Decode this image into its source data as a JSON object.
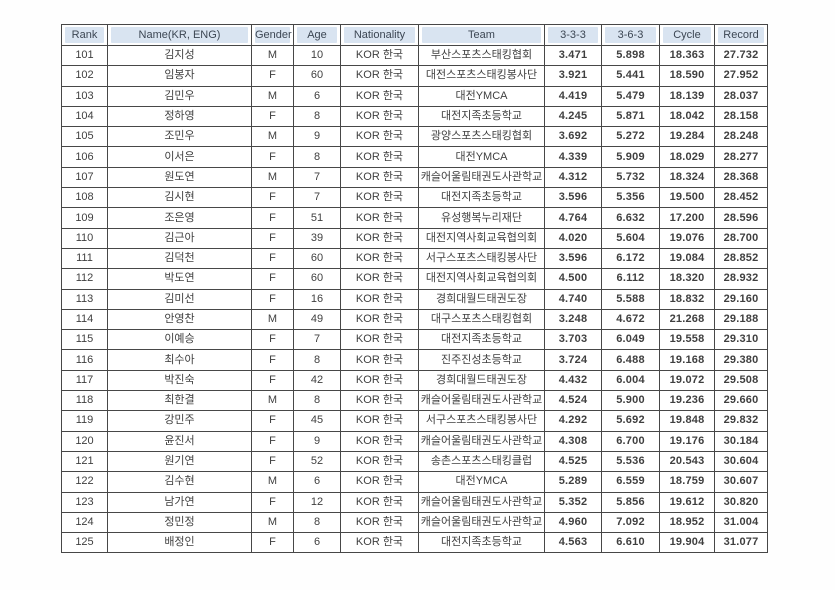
{
  "colors": {
    "header_highlight": "#d9e4f1",
    "gender_female": "#e0625b",
    "border": "#474747",
    "body_text": "#3f3f3f",
    "number_text": "#1f1f1f"
  },
  "table": {
    "columns": [
      {
        "key": "rank",
        "label": "Rank"
      },
      {
        "key": "name",
        "label": "Name(KR, ENG)"
      },
      {
        "key": "gender",
        "label": "Gender"
      },
      {
        "key": "age",
        "label": "Age"
      },
      {
        "key": "nationality",
        "label": "Nationality"
      },
      {
        "key": "team",
        "label": "Team"
      },
      {
        "key": "t333",
        "label": "3-3-3"
      },
      {
        "key": "t363",
        "label": "3-6-3"
      },
      {
        "key": "cycle",
        "label": "Cycle"
      },
      {
        "key": "record",
        "label": "Record"
      }
    ],
    "rows": [
      [
        "101",
        "김지성",
        "M",
        "10",
        "KOR 한국",
        "부산스포츠스태킹협회",
        "3.471",
        "5.898",
        "18.363",
        "27.732"
      ],
      [
        "102",
        "임봉자",
        "F",
        "60",
        "KOR 한국",
        "대전스포츠스태킹봉사단",
        "3.921",
        "5.441",
        "18.590",
        "27.952"
      ],
      [
        "103",
        "김민우",
        "M",
        "6",
        "KOR 한국",
        "대전YMCA",
        "4.419",
        "5.479",
        "18.139",
        "28.037"
      ],
      [
        "104",
        "정하영",
        "F",
        "8",
        "KOR 한국",
        "대전지족초등학교",
        "4.245",
        "5.871",
        "18.042",
        "28.158"
      ],
      [
        "105",
        "조민우",
        "M",
        "9",
        "KOR 한국",
        "광양스포츠스태킹협회",
        "3.692",
        "5.272",
        "19.284",
        "28.248"
      ],
      [
        "106",
        "이서은",
        "F",
        "8",
        "KOR 한국",
        "대전YMCA",
        "4.339",
        "5.909",
        "18.029",
        "28.277"
      ],
      [
        "107",
        "원도연",
        "M",
        "7",
        "KOR 한국",
        "캐슬어울림태권도사관학교",
        "4.312",
        "5.732",
        "18.324",
        "28.368"
      ],
      [
        "108",
        "김시현",
        "F",
        "7",
        "KOR 한국",
        "대전지족초등학교",
        "3.596",
        "5.356",
        "19.500",
        "28.452"
      ],
      [
        "109",
        "조은영",
        "F",
        "51",
        "KOR 한국",
        "유성행복누리재단",
        "4.764",
        "6.632",
        "17.200",
        "28.596"
      ],
      [
        "110",
        "김근아",
        "F",
        "39",
        "KOR 한국",
        "대전지역사회교육협의회",
        "4.020",
        "5.604",
        "19.076",
        "28.700"
      ],
      [
        "111",
        "김덕천",
        "F",
        "60",
        "KOR 한국",
        "서구스포츠스태킹봉사단",
        "3.596",
        "6.172",
        "19.084",
        "28.852"
      ],
      [
        "112",
        "박도연",
        "F",
        "60",
        "KOR 한국",
        "대전지역사회교육협의회",
        "4.500",
        "6.112",
        "18.320",
        "28.932"
      ],
      [
        "113",
        "김미선",
        "F",
        "16",
        "KOR 한국",
        "경희대월드태권도장",
        "4.740",
        "5.588",
        "18.832",
        "29.160"
      ],
      [
        "114",
        "안영찬",
        "M",
        "49",
        "KOR 한국",
        "대구스포츠스태킹협회",
        "3.248",
        "4.672",
        "21.268",
        "29.188"
      ],
      [
        "115",
        "이예승",
        "F",
        "7",
        "KOR 한국",
        "대전지족초등학교",
        "3.703",
        "6.049",
        "19.558",
        "29.310"
      ],
      [
        "116",
        "최수아",
        "F",
        "8",
        "KOR 한국",
        "진주진성초등학교",
        "3.724",
        "6.488",
        "19.168",
        "29.380"
      ],
      [
        "117",
        "박진숙",
        "F",
        "42",
        "KOR 한국",
        "경희대월드태권도장",
        "4.432",
        "6.004",
        "19.072",
        "29.508"
      ],
      [
        "118",
        "최한결",
        "M",
        "8",
        "KOR 한국",
        "캐슬어울림태권도사관학교",
        "4.524",
        "5.900",
        "19.236",
        "29.660"
      ],
      [
        "119",
        "강민주",
        "F",
        "45",
        "KOR 한국",
        "서구스포츠스태킹봉사단",
        "4.292",
        "5.692",
        "19.848",
        "29.832"
      ],
      [
        "120",
        "윤진서",
        "F",
        "9",
        "KOR 한국",
        "캐슬어울림태권도사관학교",
        "4.308",
        "6.700",
        "19.176",
        "30.184"
      ],
      [
        "121",
        "원기연",
        "F",
        "52",
        "KOR 한국",
        "송촌스포츠스태킹클럽",
        "4.525",
        "5.536",
        "20.543",
        "30.604"
      ],
      [
        "122",
        "김수현",
        "M",
        "6",
        "KOR 한국",
        "대전YMCA",
        "5.289",
        "6.559",
        "18.759",
        "30.607"
      ],
      [
        "123",
        "남가연",
        "F",
        "12",
        "KOR 한국",
        "캐슬어울림태권도사관학교",
        "5.352",
        "5.856",
        "19.612",
        "30.820"
      ],
      [
        "124",
        "정민정",
        "M",
        "8",
        "KOR 한국",
        "캐슬어울림태권도사관학교",
        "4.960",
        "7.092",
        "18.952",
        "31.004"
      ],
      [
        "125",
        "배정인",
        "F",
        "6",
        "KOR 한국",
        "대전지족초등학교",
        "4.563",
        "6.610",
        "19.904",
        "31.077"
      ]
    ]
  }
}
